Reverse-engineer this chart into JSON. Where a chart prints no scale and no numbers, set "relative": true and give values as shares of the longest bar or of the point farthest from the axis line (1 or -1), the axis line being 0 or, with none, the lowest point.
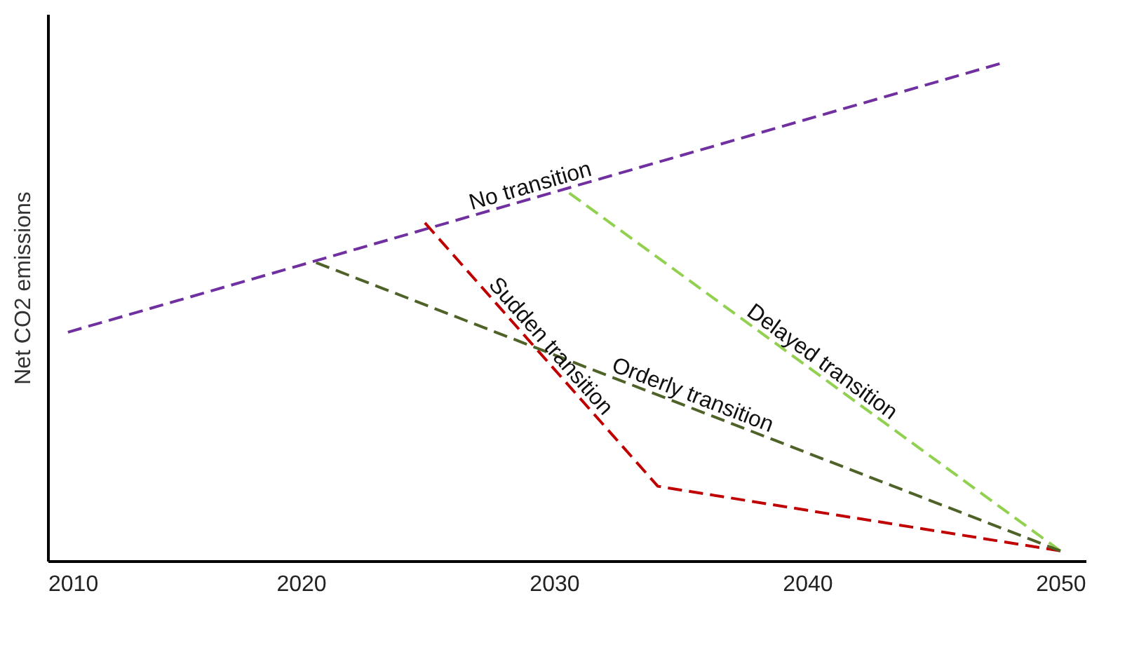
{
  "chart_data": {
    "type": "line",
    "relative": true,
    "ylabel": "Net CO2 emissions",
    "xlim": [
      2010,
      2051
    ],
    "xticks": [
      2010,
      2020,
      2030,
      2040,
      2050
    ],
    "line_style": "dashed",
    "grid": false,
    "series": [
      {
        "name": "No transition",
        "color": "#7030a0",
        "x": [
          2010.8,
          2047.6
        ],
        "values": [
          0.46,
          1
        ]
      },
      {
        "name": "Sudden transition",
        "color": "#c00000",
        "x": [
          2024.9,
          2034.1,
          2050
        ],
        "values": [
          0.68,
          0.15,
          0.02
        ]
      },
      {
        "name": "Delayed transition",
        "color": "#92d050",
        "x": [
          2030.6,
          2050
        ],
        "values": [
          0.74,
          0.02
        ]
      },
      {
        "name": "Orderly transition",
        "color": "#4f6228",
        "x": [
          2020.6,
          2050
        ],
        "values": [
          0.6,
          0.02
        ]
      }
    ]
  }
}
